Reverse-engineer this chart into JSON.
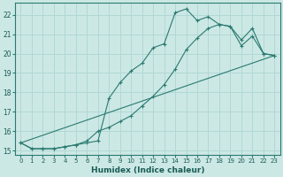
{
  "title": "",
  "xlabel": "Humidex (Indice chaleur)",
  "ylabel": "",
  "bg_color": "#cce8e5",
  "grid_color": "#b0d8d4",
  "line_color": "#2a7a70",
  "marker_color": "#2a7a70",
  "xlim": [
    -0.5,
    23.5
  ],
  "ylim": [
    14.8,
    22.6
  ],
  "yticks": [
    15,
    16,
    17,
    18,
    19,
    20,
    21,
    22
  ],
  "xticks": [
    0,
    1,
    2,
    3,
    4,
    5,
    6,
    7,
    8,
    9,
    10,
    11,
    12,
    13,
    14,
    15,
    16,
    17,
    18,
    19,
    20,
    21,
    22,
    23
  ],
  "series1_x": [
    0,
    1,
    2,
    3,
    4,
    5,
    6,
    7,
    8,
    9,
    10,
    11,
    12,
    13,
    14,
    15,
    16,
    17,
    18,
    19,
    20,
    21,
    22,
    23
  ],
  "series1_y": [
    15.4,
    15.1,
    15.1,
    15.1,
    15.2,
    15.3,
    15.4,
    15.5,
    17.7,
    18.5,
    19.1,
    19.5,
    20.3,
    20.5,
    22.1,
    22.3,
    21.7,
    21.9,
    21.5,
    21.4,
    20.4,
    20.9,
    20.0,
    19.9
  ],
  "series2_x": [
    0,
    1,
    2,
    3,
    4,
    5,
    6,
    7,
    8,
    9,
    10,
    11,
    12,
    13,
    14,
    15,
    16,
    17,
    18,
    19,
    20,
    21,
    22,
    23
  ],
  "series2_y": [
    15.4,
    15.1,
    15.1,
    15.1,
    15.2,
    15.3,
    15.5,
    16.0,
    16.2,
    16.5,
    16.8,
    17.3,
    17.8,
    18.4,
    19.2,
    20.2,
    20.8,
    21.3,
    21.5,
    21.4,
    20.7,
    21.3,
    20.0,
    19.9
  ],
  "series3_x": [
    0,
    23
  ],
  "series3_y": [
    15.4,
    19.9
  ]
}
